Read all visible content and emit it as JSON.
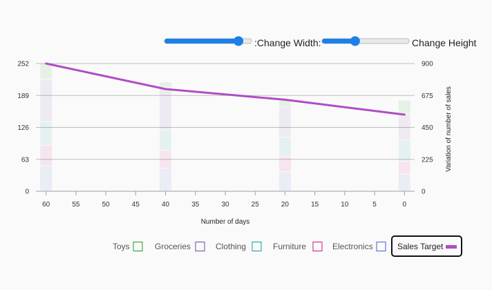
{
  "controls": {
    "width_label": ":Change Width:",
    "width_value": 0.85,
    "height_label": "Change Height",
    "height_value": 0.38
  },
  "chart_data": {
    "type": "bar",
    "stacked": true,
    "x": [
      60,
      40,
      20,
      0
    ],
    "x_ticks": [
      60,
      55,
      50,
      45,
      40,
      35,
      30,
      25,
      20,
      15,
      10,
      5,
      0
    ],
    "xlabel": "Number of days",
    "ylim_left": [
      0,
      252
    ],
    "yticks_left": [
      0,
      63,
      126,
      189,
      252
    ],
    "ylim_right": [
      0,
      900
    ],
    "yticks_right": [
      0,
      225,
      450,
      675,
      900
    ],
    "ylabel_right": "Variation of number of sales",
    "grid": true,
    "series": [
      {
        "name": "Electronics",
        "color": "#4a5fd8",
        "values": [
          50,
          45,
          38,
          33
        ]
      },
      {
        "name": "Furniture",
        "color": "#d8107a",
        "values": [
          40,
          35,
          30,
          25
        ]
      },
      {
        "name": "Clothing",
        "color": "#119c9c",
        "values": [
          47,
          40,
          38,
          42
        ]
      },
      {
        "name": "Groceries",
        "color": "#6a4c9c",
        "values": [
          83,
          84,
          60,
          52
        ]
      },
      {
        "name": "Toys",
        "color": "#1f9c1f",
        "values": [
          32,
          11,
          15,
          27
        ]
      }
    ],
    "line": {
      "name": "Sales Target",
      "color": "#b04cc6",
      "axis": "right",
      "values": [
        900,
        720,
        645,
        540
      ]
    },
    "legend": {
      "placement": "bottom-right",
      "items": [
        "Toys",
        "Groceries",
        "Clothing",
        "Furniture",
        "Electronics",
        "Sales Target"
      ],
      "highlighted": "Sales Target"
    }
  }
}
